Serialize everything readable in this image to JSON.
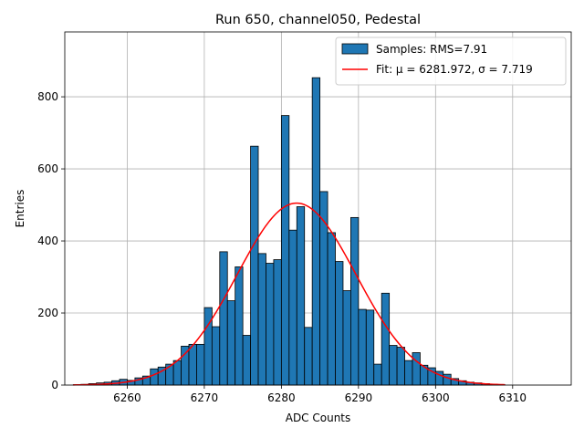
{
  "chart_data": {
    "type": "bar",
    "title": "Run 650, channel050, Pedestal",
    "xlabel": "ADC Counts",
    "ylabel": "Entries",
    "xlim": [
      6251.9,
      6317.6
    ],
    "ylim": [
      0,
      980
    ],
    "grid": true,
    "legend_position": "top-right",
    "xticks": [
      6260,
      6270,
      6280,
      6290,
      6300,
      6310
    ],
    "yticks": [
      0,
      200,
      400,
      600,
      800
    ],
    "histogram": {
      "name": "Samples: RMS=7.91",
      "color": "#1f77b4",
      "bin_edges": [
        6253.0,
        6254.0,
        6255.0,
        6256.0,
        6257.0,
        6258.0,
        6259.0,
        6260.0,
        6261.0,
        6262.0,
        6263.0,
        6264.0,
        6265.0,
        6266.0,
        6267.0,
        6268.0,
        6269.0,
        6270.0,
        6271.0,
        6272.0,
        6273.0,
        6274.0,
        6275.0,
        6276.0,
        6277.0,
        6278.0,
        6279.0,
        6280.0,
        6281.0,
        6282.0,
        6283.0,
        6284.0,
        6285.0,
        6286.0,
        6287.0,
        6288.0,
        6289.0,
        6290.0,
        6291.0,
        6292.0,
        6293.0,
        6294.0,
        6295.0,
        6296.0,
        6297.0,
        6298.0,
        6299.0,
        6300.0,
        6301.0,
        6302.0,
        6303.0,
        6304.0,
        6305.0,
        6306.0,
        6307.0,
        6308.0,
        6309.0
      ],
      "counts": [
        1,
        2,
        4,
        6,
        8,
        12,
        16,
        13,
        20,
        25,
        45,
        50,
        58,
        68,
        108,
        113,
        113,
        215,
        162,
        370,
        234,
        328,
        138,
        663,
        365,
        338,
        348,
        748,
        430,
        495,
        160,
        853,
        537,
        423,
        343,
        262,
        465,
        210,
        208,
        58,
        255,
        110,
        105,
        68,
        90,
        55,
        48,
        38,
        30,
        18,
        12,
        8,
        6,
        4,
        2,
        1
      ]
    },
    "series": [
      {
        "name": "Fit: μ = 6281.972, σ = 7.719",
        "type": "gaussian",
        "color": "#ff0000",
        "mu": 6281.972,
        "sigma": 7.719,
        "amplitude": 505,
        "x_range": [
          6253,
          6309
        ]
      }
    ]
  }
}
